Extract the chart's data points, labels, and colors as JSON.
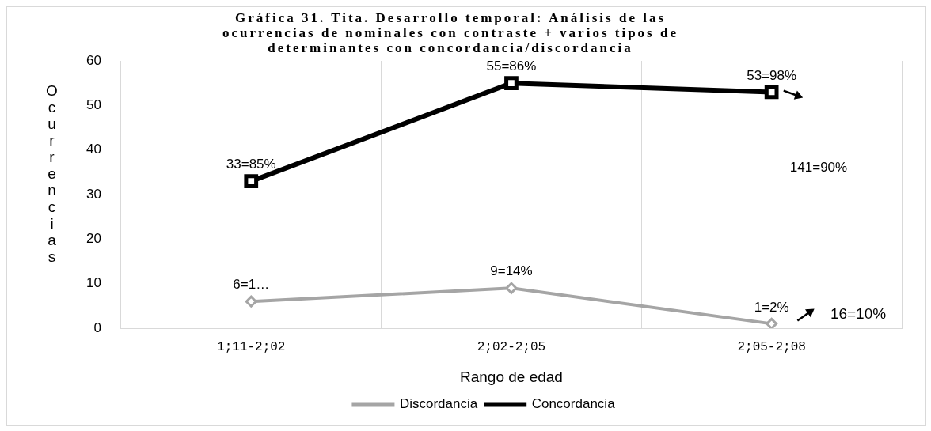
{
  "chart_data": {
    "type": "line",
    "title": "Gráfica 31. Tita. Desarrollo temporal: Análisis de las ocurrencias de nominales con contraste + varios tipos de determinantes con concordancia/discordancia",
    "xlabel": "Rango de edad",
    "ylabel": "Ocurrencias",
    "categories": [
      "1;11-2;02",
      "2;02-2;05",
      "2;05-2;08"
    ],
    "series": [
      {
        "name": "Discordancia",
        "color": "#a5a5a5",
        "marker": "diamond",
        "values": [
          6,
          9,
          1
        ],
        "value_labels": [
          "6=1…",
          "9=14%",
          "1=2%"
        ]
      },
      {
        "name": "Concordancia",
        "color": "#000000",
        "marker": "square",
        "values": [
          33,
          55,
          53
        ],
        "value_labels": [
          "33=85%",
          "55=86%",
          "53=98%"
        ]
      }
    ],
    "ylim": [
      0,
      60
    ],
    "yticks": [
      0,
      10,
      20,
      30,
      40,
      50,
      60
    ],
    "grid": "x",
    "legend": "bottom",
    "line_style": "solid",
    "annotations": [
      "141=90%",
      "16=10%"
    ]
  }
}
